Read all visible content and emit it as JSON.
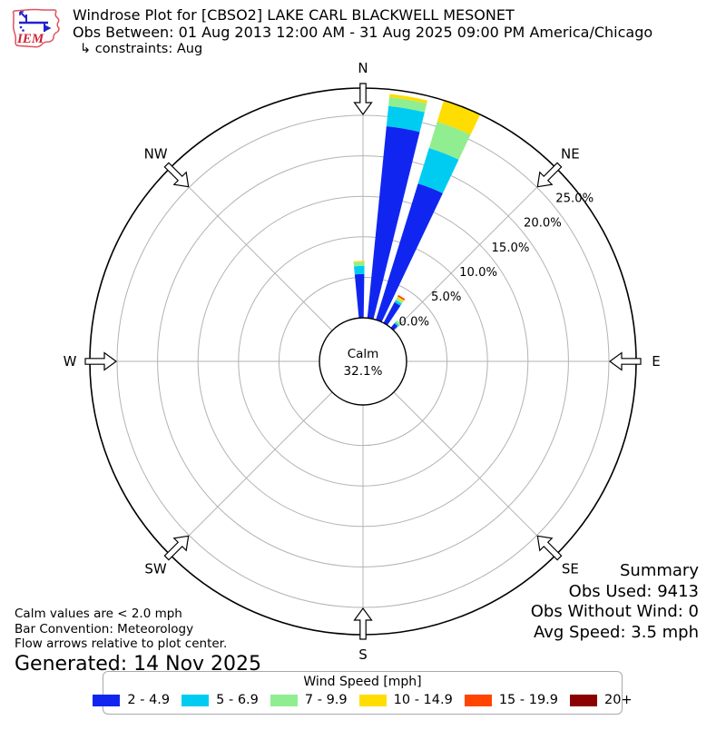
{
  "header": {
    "logo_text": "IEM",
    "title": "Windrose Plot for [CBSO2] LAKE CARL BLACKWELL MESONET",
    "subtitle": "Obs Between: 01 Aug 2013 12:00 AM - 31 Aug 2025 09:00 PM America/Chicago",
    "constraints": "↳ constraints: Aug"
  },
  "footnotes": {
    "calm_note": "Calm values are < 2.0 mph",
    "convention_note": "Bar Convention: Meteorology",
    "arrows_note": "Flow arrows relative to plot center.",
    "generated": "Generated: 14 Nov 2025"
  },
  "summary": {
    "title": "Summary",
    "obs_used": "Obs Used: 9413",
    "obs_without_wind": "Obs Without Wind: 0",
    "avg_speed": "Avg Speed: 3.5 mph"
  },
  "legend": {
    "title": "Wind Speed [mph]"
  },
  "chart_data": {
    "type": "windrose",
    "units": "mph",
    "bar_convention": "Meteorology",
    "calm_label": "Calm",
    "calm_pct": 32.1,
    "calm_threshold_mph": 2.0,
    "compass_points": [
      "N",
      "NE",
      "E",
      "SE",
      "S",
      "SW",
      "W",
      "NW"
    ],
    "ring_ticks_pct": [
      0,
      5,
      10,
      15,
      20,
      25
    ],
    "ring_tick_labels": [
      "0.0%",
      "5.0%",
      "10.0%",
      "15.0%",
      "20.0%",
      "25.0%"
    ],
    "rlabel_angle_deg": 52.5,
    "outer_ring_pct": 28.4,
    "speed_bins": [
      {
        "label": "2 - 4.9",
        "color": "#1026f0"
      },
      {
        "label": "5 - 6.9",
        "color": "#00ccf2"
      },
      {
        "label": "7 - 9.9",
        "color": "#90ee90"
      },
      {
        "label": "10 - 14.9",
        "color": "#ffdd00"
      },
      {
        "label": "15 - 19.9",
        "color": "#ff4500"
      },
      {
        "label": "20+",
        "color": "#8b0000"
      }
    ],
    "bars": [
      {
        "name": "n",
        "center_deg": -2.3,
        "width_deg": 6.3,
        "segments_pct": [
          5.4,
          1.0,
          0.5,
          0.12,
          0,
          0
        ]
      },
      {
        "name": "nne-a",
        "center_deg": 9.8,
        "width_deg": 8.2,
        "segments_pct": [
          23.8,
          2.5,
          1.1,
          0.4,
          0,
          0
        ]
      },
      {
        "name": "nne-b",
        "center_deg": 21.3,
        "width_deg": 8.2,
        "segments_pct": [
          17.6,
          4.6,
          3.4,
          2.8,
          0,
          0
        ]
      },
      {
        "name": "ne-a",
        "center_deg": 31.0,
        "width_deg": 6.0,
        "segments_pct": [
          2.9,
          0.3,
          0.3,
          0.2,
          0.2,
          0
        ]
      },
      {
        "name": "ne-b",
        "center_deg": 42.0,
        "width_deg": 5.0,
        "segments_pct": [
          0.7,
          0.2,
          0.3,
          0,
          0,
          0
        ]
      }
    ]
  }
}
